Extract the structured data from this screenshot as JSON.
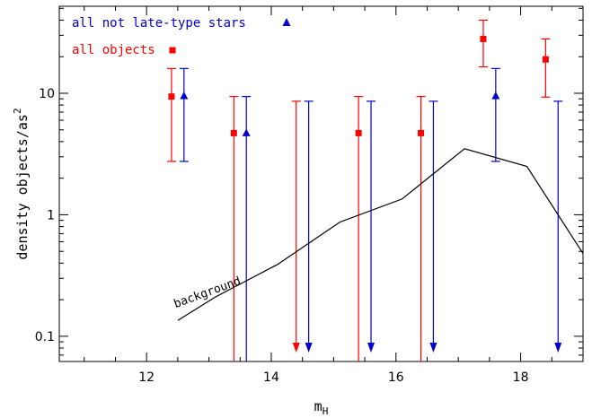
{
  "chart_data": {
    "type": "scatter",
    "xlabel": "m",
    "xlabel_sub": "H",
    "ylabel": "density objects/as",
    "ylabel_sup": "2",
    "xlim": [
      10.6,
      19.0
    ],
    "ylim": [
      0.062,
      52
    ],
    "yscale": "log",
    "x_ticks": [
      12,
      14,
      16,
      18
    ],
    "x_tick_labels": [
      "12",
      "14",
      "16",
      "18"
    ],
    "y_ticks": [
      0.1,
      1,
      10
    ],
    "y_tick_labels": [
      "0.1",
      "1",
      "10"
    ],
    "grid": false,
    "legend_position": "top-left",
    "colors": {
      "all_objects": "#ff0000",
      "not_late": "#0000cc",
      "background": "#000000"
    },
    "series": [
      {
        "name": "all not late-type stars",
        "marker": "triangle",
        "color": "#0000cc",
        "points": [
          {
            "x": 12.6,
            "y": 9.5,
            "lo": 2.75,
            "hi": 16
          },
          {
            "x": 13.6,
            "y": 4.7,
            "lo": 0.062,
            "hi": 9.4
          },
          {
            "x": 17.6,
            "y": 9.5,
            "lo": 2.75,
            "hi": 16
          }
        ],
        "upper_limits": [
          {
            "x": 14.6,
            "hi": 8.6
          },
          {
            "x": 15.6,
            "hi": 8.6
          },
          {
            "x": 16.6,
            "hi": 8.6
          },
          {
            "x": 18.6,
            "hi": 8.6
          }
        ]
      },
      {
        "name": "all objects",
        "marker": "square",
        "color": "#ff0000",
        "points": [
          {
            "x": 12.4,
            "y": 9.4,
            "lo": 2.75,
            "hi": 16
          },
          {
            "x": 13.4,
            "y": 4.7,
            "lo": 0.062,
            "hi": 9.4
          },
          {
            "x": 15.4,
            "y": 4.7,
            "lo": 0.062,
            "hi": 9.4
          },
          {
            "x": 16.4,
            "y": 4.7,
            "lo": 0.062,
            "hi": 9.4
          },
          {
            "x": 17.4,
            "y": 28,
            "lo": 16.5,
            "hi": 40
          },
          {
            "x": 18.4,
            "y": 19,
            "lo": 9.3,
            "hi": 28
          }
        ],
        "upper_limits": [
          {
            "x": 14.4,
            "hi": 8.6
          }
        ]
      },
      {
        "name": "background",
        "marker": "line",
        "color": "#000000",
        "x": [
          12.5,
          13.1,
          14.1,
          15.1,
          16.1,
          17.1,
          18.1,
          19.0
        ],
        "y": [
          0.135,
          0.21,
          0.39,
          0.87,
          1.35,
          3.5,
          2.5,
          0.48
        ]
      }
    ],
    "legend": [
      {
        "label": "all not late-type stars",
        "color": "#0000cc",
        "marker": "triangle"
      },
      {
        "label": "all objects",
        "color": "#ff0000",
        "marker": "square"
      }
    ],
    "annotations": [
      {
        "text": "background",
        "anchor_x": 12.55,
        "anchor_y": 0.16
      }
    ]
  }
}
